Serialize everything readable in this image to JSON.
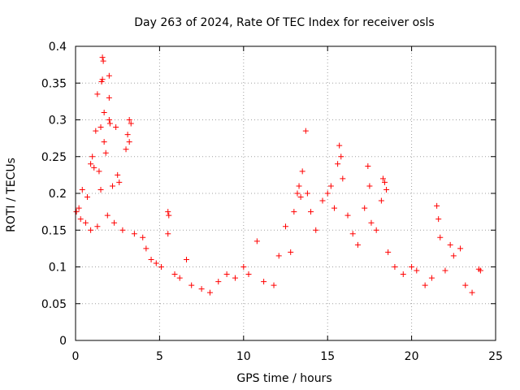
{
  "chart_data": {
    "type": "scatter",
    "title": "Day 263 of 2024, Rate Of TEC Index for receiver osls",
    "xlabel": "GPS time / hours",
    "ylabel": "ROTI / TECUs",
    "xlim": [
      0,
      25
    ],
    "ylim": [
      0,
      0.4
    ],
    "x_ticks": [
      0,
      5,
      10,
      15,
      20,
      25
    ],
    "x_tick_labels": [
      "0",
      "5",
      "10",
      "15",
      "20",
      "25"
    ],
    "y_ticks": [
      0,
      0.05,
      0.1,
      0.15,
      0.2,
      0.25,
      0.3,
      0.35,
      0.4
    ],
    "y_tick_labels": [
      "0",
      "0.05",
      "0.1",
      "0.15",
      "0.2",
      "0.25",
      "0.3",
      "0.35",
      "0.4"
    ],
    "grid": true,
    "marker": "+",
    "color": "#ff0000",
    "series": [
      {
        "name": "ROTI",
        "points": [
          [
            1.6,
            0.385
          ],
          [
            1.65,
            0.38
          ],
          [
            1.6,
            0.355
          ],
          [
            1.55,
            0.352
          ],
          [
            2.0,
            0.36
          ],
          [
            1.3,
            0.335
          ],
          [
            2.0,
            0.33
          ],
          [
            1.7,
            0.31
          ],
          [
            2.0,
            0.3
          ],
          [
            2.05,
            0.295
          ],
          [
            1.5,
            0.29
          ],
          [
            2.4,
            0.29
          ],
          [
            1.2,
            0.285
          ],
          [
            3.2,
            0.3
          ],
          [
            3.3,
            0.295
          ],
          [
            3.1,
            0.28
          ],
          [
            3.2,
            0.27
          ],
          [
            3.0,
            0.26
          ],
          [
            1.7,
            0.27
          ],
          [
            1.8,
            0.255
          ],
          [
            1.0,
            0.25
          ],
          [
            0.9,
            0.24
          ],
          [
            1.1,
            0.235
          ],
          [
            1.4,
            0.23
          ],
          [
            2.5,
            0.225
          ],
          [
            2.6,
            0.215
          ],
          [
            2.2,
            0.21
          ],
          [
            1.5,
            0.205
          ],
          [
            0.4,
            0.205
          ],
          [
            0.7,
            0.195
          ],
          [
            0.2,
            0.18
          ],
          [
            0.05,
            0.175
          ],
          [
            0.3,
            0.165
          ],
          [
            0.6,
            0.16
          ],
          [
            0.9,
            0.15
          ],
          [
            1.3,
            0.155
          ],
          [
            1.9,
            0.17
          ],
          [
            2.3,
            0.16
          ],
          [
            2.8,
            0.15
          ],
          [
            3.5,
            0.145
          ],
          [
            4.0,
            0.14
          ],
          [
            4.2,
            0.125
          ],
          [
            4.5,
            0.11
          ],
          [
            4.8,
            0.105
          ],
          [
            5.1,
            0.1
          ],
          [
            5.5,
            0.175
          ],
          [
            5.55,
            0.17
          ],
          [
            5.5,
            0.145
          ],
          [
            5.9,
            0.09
          ],
          [
            6.2,
            0.085
          ],
          [
            6.6,
            0.11
          ],
          [
            6.9,
            0.075
          ],
          [
            7.5,
            0.07
          ],
          [
            8.0,
            0.065
          ],
          [
            8.5,
            0.08
          ],
          [
            9.0,
            0.09
          ],
          [
            9.5,
            0.085
          ],
          [
            10.0,
            0.1
          ],
          [
            10.3,
            0.09
          ],
          [
            10.8,
            0.135
          ],
          [
            11.2,
            0.08
          ],
          [
            11.8,
            0.075
          ],
          [
            12.1,
            0.115
          ],
          [
            12.5,
            0.155
          ],
          [
            12.8,
            0.12
          ],
          [
            13.0,
            0.175
          ],
          [
            13.2,
            0.2
          ],
          [
            13.3,
            0.21
          ],
          [
            13.4,
            0.195
          ],
          [
            13.5,
            0.23
          ],
          [
            13.7,
            0.285
          ],
          [
            13.8,
            0.2
          ],
          [
            14.0,
            0.175
          ],
          [
            14.3,
            0.15
          ],
          [
            14.7,
            0.19
          ],
          [
            15.0,
            0.2
          ],
          [
            15.2,
            0.21
          ],
          [
            15.4,
            0.18
          ],
          [
            15.6,
            0.24
          ],
          [
            15.7,
            0.265
          ],
          [
            15.8,
            0.25
          ],
          [
            15.9,
            0.22
          ],
          [
            16.2,
            0.17
          ],
          [
            16.5,
            0.145
          ],
          [
            16.8,
            0.13
          ],
          [
            17.2,
            0.18
          ],
          [
            17.4,
            0.237
          ],
          [
            17.5,
            0.21
          ],
          [
            17.6,
            0.16
          ],
          [
            17.9,
            0.15
          ],
          [
            18.2,
            0.19
          ],
          [
            18.3,
            0.22
          ],
          [
            18.4,
            0.215
          ],
          [
            18.5,
            0.205
          ],
          [
            18.6,
            0.12
          ],
          [
            19.0,
            0.1
          ],
          [
            19.5,
            0.09
          ],
          [
            20.0,
            0.1
          ],
          [
            20.3,
            0.095
          ],
          [
            20.8,
            0.075
          ],
          [
            21.2,
            0.085
          ],
          [
            21.5,
            0.183
          ],
          [
            21.6,
            0.165
          ],
          [
            21.7,
            0.14
          ],
          [
            22.0,
            0.095
          ],
          [
            22.3,
            0.13
          ],
          [
            22.5,
            0.115
          ],
          [
            22.9,
            0.125
          ],
          [
            23.2,
            0.075
          ],
          [
            23.6,
            0.065
          ],
          [
            24.0,
            0.097
          ],
          [
            24.1,
            0.095
          ]
        ]
      }
    ]
  }
}
